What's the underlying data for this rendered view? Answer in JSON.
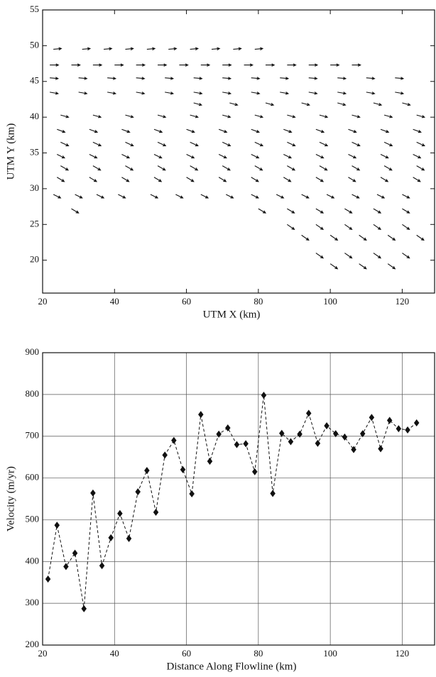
{
  "chart_data": [
    {
      "type": "quiver",
      "x_label": "UTM X (km)",
      "y_label": "UTM Y (km)",
      "color": "#111111",
      "xlim": [
        20,
        129
      ],
      "ylim": [
        15.4,
        55
      ],
      "xticks": [
        20,
        40,
        60,
        80,
        100,
        120
      ],
      "yticks": [
        20,
        25,
        30,
        35,
        40,
        45,
        50,
        55
      ],
      "grid": false,
      "rows": [
        {
          "y": 49.5,
          "x": [
            23,
            31,
            37,
            43,
            49,
            55,
            61,
            67,
            73,
            79
          ],
          "u": 2.2,
          "v": 0.1
        },
        {
          "y": 47.3,
          "x": [
            22,
            28,
            34,
            40,
            46,
            52,
            58,
            64,
            70,
            76,
            82,
            88,
            94,
            100,
            106
          ],
          "u": 2.4,
          "v": 0
        },
        {
          "y": 45.5,
          "x": [
            22,
            30,
            38,
            46,
            54,
            62,
            70,
            78,
            86,
            94,
            102,
            110,
            118
          ],
          "u": 2.3,
          "v": -0.1
        },
        {
          "y": 43.5,
          "x": [
            22,
            30,
            38,
            46,
            54,
            62,
            70,
            78,
            86,
            94,
            102,
            110,
            118
          ],
          "u": 2.3,
          "v": -0.2
        },
        {
          "y": 42,
          "x": [
            62,
            72,
            82,
            92,
            102,
            112,
            120
          ],
          "u": 2.2,
          "v": -0.3
        },
        {
          "y": 40.3,
          "x": [
            25,
            34,
            43,
            52,
            61,
            70,
            79,
            88,
            97,
            106,
            115,
            124
          ],
          "u": 2.2,
          "v": -0.3
        },
        {
          "y": 38.3,
          "x": [
            24,
            33,
            42,
            51,
            60,
            69,
            78,
            87,
            96,
            105,
            114,
            123
          ],
          "u": 2.2,
          "v": -0.4
        },
        {
          "y": 36.5,
          "x": [
            25,
            34,
            43,
            52,
            61,
            70,
            79,
            88,
            97,
            106,
            115,
            124
          ],
          "u": 2.2,
          "v": -0.5
        },
        {
          "y": 34.8,
          "x": [
            24,
            33,
            42,
            51,
            60,
            69,
            78,
            87,
            96,
            105,
            114,
            123
          ],
          "u": 2.1,
          "v": -0.5
        },
        {
          "y": 33.2,
          "x": [
            25,
            34,
            43,
            52,
            61,
            70,
            79,
            88,
            97,
            106,
            115,
            124
          ],
          "u": 2.1,
          "v": -0.6
        },
        {
          "y": 31.6,
          "x": [
            24,
            33,
            42,
            51,
            60,
            69,
            78,
            87,
            96,
            105,
            114,
            123
          ],
          "u": 2.0,
          "v": -0.6
        },
        {
          "y": 29.2,
          "x": [
            23,
            29,
            35,
            41,
            50,
            57,
            64,
            71,
            78,
            85,
            92,
            99,
            106,
            113,
            120
          ],
          "u": 2.0,
          "v": -0.5
        },
        {
          "y": 27.2,
          "x": [
            28,
            80,
            88,
            96,
            104,
            112,
            120
          ],
          "u": 2.0,
          "v": -0.6
        },
        {
          "y": 25,
          "x": [
            88,
            96,
            104,
            112,
            120
          ],
          "u": 2.0,
          "v": -0.7
        },
        {
          "y": 23.5,
          "x": [
            92,
            100,
            108,
            116,
            124
          ],
          "u": 2.0,
          "v": -0.7
        },
        {
          "y": 21,
          "x": [
            96,
            104,
            112,
            120
          ],
          "u": 2.0,
          "v": -0.7
        },
        {
          "y": 19.5,
          "x": [
            100,
            108,
            116
          ],
          "u": 2.0,
          "v": -0.7
        }
      ]
    },
    {
      "type": "line",
      "x_label": "Distance Along Flowline (km)",
      "y_label": "Velocity (m/yr)",
      "color": "#111111",
      "marker": "diamond",
      "line_style": "dashed",
      "xlim": [
        20,
        129
      ],
      "ylim": [
        200,
        900
      ],
      "xticks": [
        20,
        40,
        60,
        80,
        100,
        120
      ],
      "yticks": [
        200,
        300,
        400,
        500,
        600,
        700,
        800,
        900
      ],
      "grid": true,
      "x": [
        21.5,
        24,
        26.5,
        29,
        31.5,
        34,
        36.5,
        39,
        41.5,
        44,
        46.5,
        49,
        51.5,
        54,
        56.5,
        59,
        61.5,
        64,
        66.5,
        69,
        71.5,
        74,
        76.5,
        79,
        81.5,
        84,
        86.5,
        89,
        91.5,
        94,
        96.5,
        99,
        101.5,
        104,
        106.5,
        109,
        111.5,
        114,
        116.5,
        119,
        121.5,
        124
      ],
      "values": [
        358,
        487,
        388,
        420,
        287,
        564,
        390,
        457,
        515,
        455,
        567,
        618,
        518,
        655,
        690,
        620,
        562,
        752,
        640,
        705,
        720,
        680,
        682,
        615,
        798,
        563,
        707,
        687,
        705,
        755,
        683,
        725,
        706,
        698,
        668,
        706,
        745,
        670,
        738,
        718,
        715,
        732
      ]
    }
  ]
}
